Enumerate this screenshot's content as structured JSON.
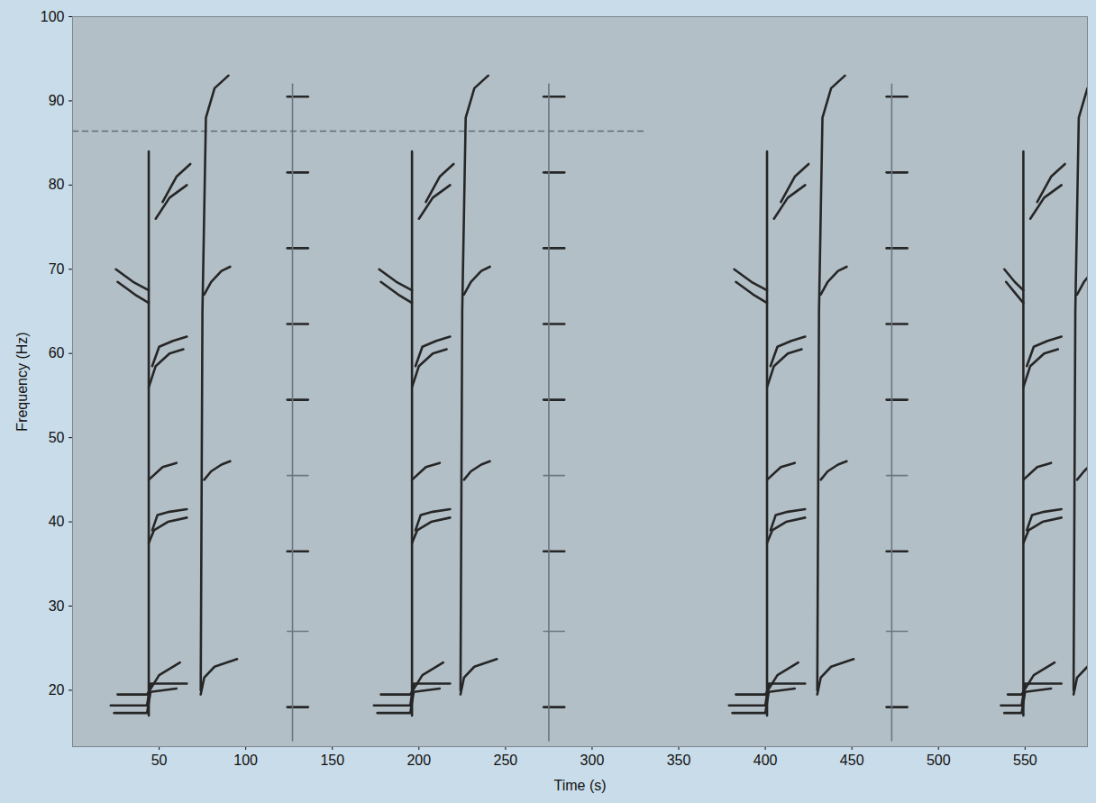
{
  "chart_data": {
    "type": "line",
    "x_label": "Time (s)",
    "y_label": "Frequency (Hz)",
    "xlim": [
      0,
      586
    ],
    "ylim": [
      13.3,
      100
    ],
    "xticks": [
      50,
      100,
      150,
      200,
      250,
      300,
      350,
      400,
      450,
      500,
      550
    ],
    "yticks": [
      20,
      30,
      40,
      50,
      60,
      70,
      80,
      90,
      100
    ],
    "grid": false,
    "color": "#262626",
    "series": [
      {
        "x": [
          0,
          330
        ],
        "values": [
          86.4,
          86.4
        ],
        "line_style": "dashed",
        "color": "#5f6b74"
      },
      {
        "x": [
          22,
          43,
          45,
          66
        ],
        "values": [
          18.2,
          18.2,
          20.8,
          20.8
        ]
      },
      {
        "x": [
          24,
          43,
          45,
          60
        ],
        "values": [
          17.3,
          17.3,
          19.8,
          20.2
        ]
      },
      {
        "x": [
          26,
          43,
          50,
          62
        ],
        "values": [
          19.5,
          19.5,
          21.8,
          23.3
        ]
      },
      {
        "x": [
          44,
          47,
          55,
          66
        ],
        "values": [
          37.5,
          39,
          40,
          40.5
        ]
      },
      {
        "x": [
          46,
          49,
          56,
          66
        ],
        "values": [
          39,
          40.8,
          41.2,
          41.5
        ]
      },
      {
        "x": [
          44,
          52,
          60
        ],
        "values": [
          45,
          46.5,
          47
        ]
      },
      {
        "x": [
          44,
          48,
          56,
          64
        ],
        "values": [
          56,
          58.5,
          60,
          60.5
        ]
      },
      {
        "x": [
          46,
          50,
          58,
          66
        ],
        "values": [
          58.5,
          60.8,
          61.5,
          62
        ]
      },
      {
        "x": [
          25,
          35,
          44
        ],
        "values": [
          70,
          68.5,
          67.5
        ]
      },
      {
        "x": [
          26,
          36,
          44
        ],
        "values": [
          68.5,
          67,
          66
        ]
      },
      {
        "x": [
          48,
          56,
          66
        ],
        "values": [
          76,
          78.5,
          80
        ]
      },
      {
        "x": [
          52,
          60,
          68
        ],
        "values": [
          78,
          81,
          82.5
        ]
      },
      {
        "x": [
          44,
          44
        ],
        "values": [
          17,
          84
        ]
      },
      {
        "x": [
          74,
          76,
          82,
          95
        ],
        "values": [
          19.5,
          21.5,
          22.8,
          23.7
        ]
      },
      {
        "x": [
          74,
          75,
          77,
          82,
          90
        ],
        "values": [
          20,
          65,
          88,
          91.5,
          93
        ]
      },
      {
        "x": [
          76,
          80,
          86,
          91
        ],
        "values": [
          67,
          68.5,
          69.8,
          70.3
        ]
      },
      {
        "x": [
          76,
          80,
          86,
          91
        ],
        "values": [
          45,
          46,
          46.8,
          47.2
        ]
      },
      {
        "x": [
          124,
          136
        ],
        "values": [
          18,
          18
        ]
      },
      {
        "x": [
          124,
          136
        ],
        "values": [
          27,
          27
        ],
        "color": "#6b7780"
      },
      {
        "x": [
          124,
          136
        ],
        "values": [
          36.5,
          36.5
        ]
      },
      {
        "x": [
          124,
          136
        ],
        "values": [
          45.5,
          45.5
        ],
        "color": "#6b7780"
      },
      {
        "x": [
          124,
          136
        ],
        "values": [
          54.5,
          54.5
        ]
      },
      {
        "x": [
          124,
          136
        ],
        "values": [
          63.5,
          63.5
        ]
      },
      {
        "x": [
          124,
          136
        ],
        "values": [
          72.5,
          72.5
        ]
      },
      {
        "x": [
          124,
          136
        ],
        "values": [
          81.5,
          81.5
        ]
      },
      {
        "x": [
          124,
          136
        ],
        "values": [
          90.5,
          90.5
        ]
      },
      {
        "x": [
          127,
          127
        ],
        "values": [
          14,
          92
        ],
        "color": "#6b7780"
      },
      {
        "x": [
          174,
          195,
          197,
          218
        ],
        "values": [
          18.2,
          18.2,
          20.8,
          20.8
        ]
      },
      {
        "x": [
          176,
          195,
          197,
          212
        ],
        "values": [
          17.3,
          17.3,
          19.8,
          20.2
        ]
      },
      {
        "x": [
          178,
          195,
          202,
          214
        ],
        "values": [
          19.5,
          19.5,
          21.8,
          23.3
        ]
      },
      {
        "x": [
          196,
          199,
          207,
          218
        ],
        "values": [
          37.5,
          39,
          40,
          40.5
        ]
      },
      {
        "x": [
          198,
          201,
          208,
          218
        ],
        "values": [
          39,
          40.8,
          41.2,
          41.5
        ]
      },
      {
        "x": [
          196,
          204,
          212
        ],
        "values": [
          45,
          46.5,
          47
        ]
      },
      {
        "x": [
          196,
          200,
          208,
          216
        ],
        "values": [
          56,
          58.5,
          60,
          60.5
        ]
      },
      {
        "x": [
          198,
          202,
          210,
          218
        ],
        "values": [
          58.5,
          60.8,
          61.5,
          62
        ]
      },
      {
        "x": [
          177,
          187,
          196
        ],
        "values": [
          70,
          68.5,
          67.5
        ]
      },
      {
        "x": [
          178,
          188,
          196
        ],
        "values": [
          68.5,
          67,
          66
        ]
      },
      {
        "x": [
          200,
          208,
          218
        ],
        "values": [
          76,
          78.5,
          80
        ]
      },
      {
        "x": [
          204,
          212,
          220
        ],
        "values": [
          78,
          81,
          82.5
        ]
      },
      {
        "x": [
          196,
          196
        ],
        "values": [
          17,
          84
        ]
      },
      {
        "x": [
          224,
          226,
          232,
          245
        ],
        "values": [
          19.5,
          21.5,
          22.8,
          23.7
        ]
      },
      {
        "x": [
          224,
          225,
          227,
          232,
          240
        ],
        "values": [
          20,
          65,
          88,
          91.5,
          93
        ]
      },
      {
        "x": [
          226,
          230,
          236,
          241
        ],
        "values": [
          67,
          68.5,
          69.8,
          70.3
        ]
      },
      {
        "x": [
          226,
          230,
          236,
          241
        ],
        "values": [
          45,
          46,
          46.8,
          47.2
        ]
      },
      {
        "x": [
          272,
          284
        ],
        "values": [
          18,
          18
        ]
      },
      {
        "x": [
          272,
          284
        ],
        "values": [
          27,
          27
        ],
        "color": "#6b7780"
      },
      {
        "x": [
          272,
          284
        ],
        "values": [
          36.5,
          36.5
        ]
      },
      {
        "x": [
          272,
          284
        ],
        "values": [
          45.5,
          45.5
        ],
        "color": "#6b7780"
      },
      {
        "x": [
          272,
          284
        ],
        "values": [
          54.5,
          54.5
        ]
      },
      {
        "x": [
          272,
          284
        ],
        "values": [
          63.5,
          63.5
        ]
      },
      {
        "x": [
          272,
          284
        ],
        "values": [
          72.5,
          72.5
        ]
      },
      {
        "x": [
          272,
          284
        ],
        "values": [
          81.5,
          81.5
        ]
      },
      {
        "x": [
          272,
          284
        ],
        "values": [
          90.5,
          90.5
        ]
      },
      {
        "x": [
          275,
          275
        ],
        "values": [
          14,
          92
        ],
        "color": "#6b7780"
      },
      {
        "x": [
          379,
          400,
          402,
          423
        ],
        "values": [
          18.2,
          18.2,
          20.8,
          20.8
        ]
      },
      {
        "x": [
          381,
          400,
          402,
          417
        ],
        "values": [
          17.3,
          17.3,
          19.8,
          20.2
        ]
      },
      {
        "x": [
          383,
          400,
          407,
          419
        ],
        "values": [
          19.5,
          19.5,
          21.8,
          23.3
        ]
      },
      {
        "x": [
          401,
          404,
          412,
          423
        ],
        "values": [
          37.5,
          39,
          40,
          40.5
        ]
      },
      {
        "x": [
          403,
          406,
          413,
          423
        ],
        "values": [
          39,
          40.8,
          41.2,
          41.5
        ]
      },
      {
        "x": [
          401,
          409,
          417
        ],
        "values": [
          45,
          46.5,
          47
        ]
      },
      {
        "x": [
          401,
          405,
          413,
          421
        ],
        "values": [
          56,
          58.5,
          60,
          60.5
        ]
      },
      {
        "x": [
          403,
          407,
          415,
          423
        ],
        "values": [
          58.5,
          60.8,
          61.5,
          62
        ]
      },
      {
        "x": [
          382,
          392,
          401
        ],
        "values": [
          70,
          68.5,
          67.5
        ]
      },
      {
        "x": [
          383,
          393,
          401
        ],
        "values": [
          68.5,
          67,
          66
        ]
      },
      {
        "x": [
          405,
          413,
          423
        ],
        "values": [
          76,
          78.5,
          80
        ]
      },
      {
        "x": [
          409,
          417,
          425
        ],
        "values": [
          78,
          81,
          82.5
        ]
      },
      {
        "x": [
          401,
          401
        ],
        "values": [
          17,
          84
        ]
      },
      {
        "x": [
          430,
          432,
          438,
          451
        ],
        "values": [
          19.5,
          21.5,
          22.8,
          23.7
        ]
      },
      {
        "x": [
          430,
          431,
          433,
          438,
          446
        ],
        "values": [
          20,
          65,
          88,
          91.5,
          93
        ]
      },
      {
        "x": [
          432,
          436,
          442,
          447
        ],
        "values": [
          67,
          68.5,
          69.8,
          70.3
        ]
      },
      {
        "x": [
          432,
          436,
          442,
          447
        ],
        "values": [
          45,
          46,
          46.8,
          47.2
        ]
      },
      {
        "x": [
          470,
          482
        ],
        "values": [
          18,
          18
        ]
      },
      {
        "x": [
          470,
          482
        ],
        "values": [
          27,
          27
        ],
        "color": "#6b7780"
      },
      {
        "x": [
          470,
          482
        ],
        "values": [
          36.5,
          36.5
        ]
      },
      {
        "x": [
          470,
          482
        ],
        "values": [
          45.5,
          45.5
        ],
        "color": "#6b7780"
      },
      {
        "x": [
          470,
          482
        ],
        "values": [
          54.5,
          54.5
        ]
      },
      {
        "x": [
          470,
          482
        ],
        "values": [
          63.5,
          63.5
        ]
      },
      {
        "x": [
          470,
          482
        ],
        "values": [
          72.5,
          72.5
        ]
      },
      {
        "x": [
          470,
          482
        ],
        "values": [
          81.5,
          81.5
        ]
      },
      {
        "x": [
          470,
          482
        ],
        "values": [
          90.5,
          90.5
        ]
      },
      {
        "x": [
          473,
          473
        ],
        "values": [
          14,
          92
        ],
        "color": "#6b7780"
      },
      {
        "x": [
          536,
          548,
          550,
          571
        ],
        "values": [
          18.2,
          18.2,
          20.8,
          20.8
        ]
      },
      {
        "x": [
          538,
          548,
          550,
          565
        ],
        "values": [
          17.3,
          17.3,
          19.8,
          20.2
        ]
      },
      {
        "x": [
          540,
          548,
          555,
          567
        ],
        "values": [
          19.5,
          19.5,
          21.8,
          23.3
        ]
      },
      {
        "x": [
          549,
          552,
          560,
          571
        ],
        "values": [
          37.5,
          39,
          40,
          40.5
        ]
      },
      {
        "x": [
          551,
          554,
          561,
          571
        ],
        "values": [
          39,
          40.8,
          41.2,
          41.5
        ]
      },
      {
        "x": [
          549,
          557,
          565
        ],
        "values": [
          45,
          46.5,
          47
        ]
      },
      {
        "x": [
          549,
          553,
          561,
          569
        ],
        "values": [
          56,
          58.5,
          60,
          60.5
        ]
      },
      {
        "x": [
          551,
          555,
          563,
          571
        ],
        "values": [
          58.5,
          60.8,
          61.5,
          62
        ]
      },
      {
        "x": [
          538,
          544,
          549
        ],
        "values": [
          70,
          68.5,
          67.5
        ]
      },
      {
        "x": [
          539,
          545,
          549
        ],
        "values": [
          68.5,
          67,
          66
        ]
      },
      {
        "x": [
          553,
          561,
          571
        ],
        "values": [
          76,
          78.5,
          80
        ]
      },
      {
        "x": [
          557,
          565,
          573
        ],
        "values": [
          78,
          81,
          82.5
        ]
      },
      {
        "x": [
          549,
          549
        ],
        "values": [
          17,
          84
        ]
      },
      {
        "x": [
          578,
          580,
          586
        ],
        "values": [
          19.5,
          21.5,
          22.8
        ]
      },
      {
        "x": [
          578,
          579,
          581,
          586
        ],
        "values": [
          20,
          65,
          88,
          91.5
        ]
      },
      {
        "x": [
          580,
          584,
          586
        ],
        "values": [
          67,
          68.5,
          69
        ]
      },
      {
        "x": [
          580,
          584,
          586
        ],
        "values": [
          45,
          46,
          46.4
        ]
      }
    ]
  }
}
